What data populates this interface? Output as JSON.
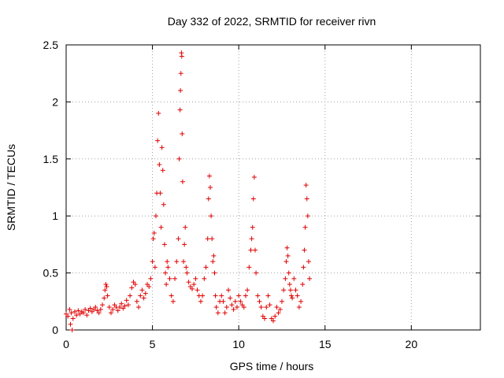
{
  "chart_data": {
    "type": "scatter",
    "title": "Day 332 of 2022, SRMTID for receiver rivn",
    "xlabel": "GPS time / hours",
    "ylabel": "SRMTID / TECUs",
    "xlim": [
      0,
      24
    ],
    "ylim": [
      0,
      2.5
    ],
    "x_ticks": [
      0,
      5,
      10,
      15,
      20
    ],
    "x_tick_labels": [
      "0",
      "5",
      "10",
      "15",
      "20"
    ],
    "y_ticks": [
      0,
      0.5,
      1,
      1.5,
      2,
      2.5
    ],
    "y_tick_labels": [
      "0",
      "0.5",
      "1",
      "1.5",
      "2",
      "2.5"
    ],
    "grid": true,
    "marker": "+",
    "color": "#e00000",
    "series": [
      {
        "name": "SRMTID",
        "x": [
          0.0,
          0.1,
          0.2,
          0.25,
          0.3,
          0.35,
          0.4,
          0.5,
          0.6,
          0.7,
          0.8,
          0.9,
          1.0,
          1.1,
          1.2,
          1.3,
          1.4,
          1.5,
          1.6,
          1.7,
          1.8,
          1.9,
          2.0,
          2.1,
          2.2,
          2.25,
          2.3,
          2.35,
          2.4,
          2.5,
          2.6,
          2.7,
          2.8,
          2.9,
          3.0,
          3.1,
          3.2,
          3.3,
          3.4,
          3.5,
          3.6,
          3.7,
          3.8,
          3.9,
          4.0,
          4.1,
          4.2,
          4.3,
          4.4,
          4.5,
          4.6,
          4.7,
          4.8,
          4.9,
          5.0,
          5.05,
          5.1,
          5.15,
          5.2,
          5.25,
          5.3,
          5.35,
          5.4,
          5.45,
          5.5,
          5.55,
          5.6,
          5.65,
          5.7,
          5.75,
          5.8,
          5.85,
          5.9,
          6.0,
          6.1,
          6.2,
          6.3,
          6.4,
          6.5,
          6.55,
          6.6,
          6.62,
          6.65,
          6.68,
          6.7,
          6.72,
          6.75,
          6.8,
          6.85,
          6.9,
          6.95,
          7.0,
          7.1,
          7.2,
          7.3,
          7.4,
          7.5,
          7.6,
          7.7,
          7.8,
          7.9,
          8.0,
          8.1,
          8.2,
          8.25,
          8.3,
          8.35,
          8.4,
          8.45,
          8.5,
          8.55,
          8.6,
          8.65,
          8.7,
          8.8,
          8.9,
          9.0,
          9.1,
          9.2,
          9.3,
          9.4,
          9.5,
          9.6,
          9.7,
          9.8,
          9.9,
          10.0,
          10.1,
          10.2,
          10.3,
          10.4,
          10.5,
          10.6,
          10.7,
          10.75,
          10.8,
          10.85,
          10.9,
          10.95,
          11.0,
          11.1,
          11.2,
          11.3,
          11.4,
          11.5,
          11.6,
          11.7,
          11.8,
          11.9,
          12.0,
          12.1,
          12.2,
          12.3,
          12.4,
          12.5,
          12.6,
          12.7,
          12.75,
          12.8,
          12.85,
          12.9,
          12.95,
          13.0,
          13.05,
          13.1,
          13.2,
          13.3,
          13.4,
          13.5,
          13.6,
          13.7,
          13.75,
          13.8,
          13.85,
          13.9,
          13.95,
          14.0,
          14.05,
          14.1
        ],
        "y": [
          0.14,
          0.12,
          0.18,
          0.05,
          0.15,
          0.0,
          0.1,
          0.16,
          0.13,
          0.17,
          0.14,
          0.16,
          0.15,
          0.18,
          0.13,
          0.17,
          0.19,
          0.16,
          0.18,
          0.2,
          0.17,
          0.15,
          0.18,
          0.22,
          0.28,
          0.35,
          0.4,
          0.38,
          0.3,
          0.2,
          0.15,
          0.18,
          0.22,
          0.2,
          0.17,
          0.2,
          0.23,
          0.19,
          0.21,
          0.26,
          0.22,
          0.3,
          0.37,
          0.42,
          0.4,
          0.25,
          0.2,
          0.3,
          0.35,
          0.28,
          0.32,
          0.4,
          0.38,
          0.45,
          0.6,
          0.8,
          0.85,
          0.55,
          1.0,
          1.2,
          1.66,
          1.9,
          1.45,
          1.2,
          0.9,
          1.6,
          1.4,
          1.1,
          0.75,
          0.5,
          0.4,
          0.6,
          0.55,
          0.45,
          0.3,
          0.25,
          0.45,
          0.6,
          0.8,
          1.5,
          1.93,
          2.1,
          2.25,
          2.43,
          2.4,
          1.72,
          1.3,
          0.6,
          0.75,
          0.9,
          0.55,
          0.5,
          0.42,
          0.38,
          0.36,
          0.4,
          0.45,
          0.35,
          0.3,
          0.25,
          0.3,
          0.45,
          0.55,
          0.8,
          1.15,
          1.35,
          1.25,
          1.0,
          0.8,
          0.6,
          0.65,
          0.5,
          0.3,
          0.2,
          0.15,
          0.25,
          0.3,
          0.25,
          0.15,
          0.2,
          0.35,
          0.28,
          0.22,
          0.18,
          0.25,
          0.2,
          0.3,
          0.25,
          0.22,
          0.2,
          0.3,
          0.35,
          0.55,
          0.7,
          0.8,
          0.9,
          1.15,
          1.34,
          0.7,
          0.5,
          0.3,
          0.25,
          0.2,
          0.12,
          0.1,
          0.2,
          0.3,
          0.22,
          0.1,
          0.08,
          0.12,
          0.2,
          0.15,
          0.18,
          0.25,
          0.35,
          0.45,
          0.6,
          0.72,
          0.65,
          0.5,
          0.4,
          0.35,
          0.3,
          0.28,
          0.45,
          0.35,
          0.3,
          0.2,
          0.25,
          0.4,
          0.55,
          0.7,
          0.9,
          1.27,
          1.15,
          1.0,
          0.6,
          0.45
        ]
      }
    ]
  }
}
